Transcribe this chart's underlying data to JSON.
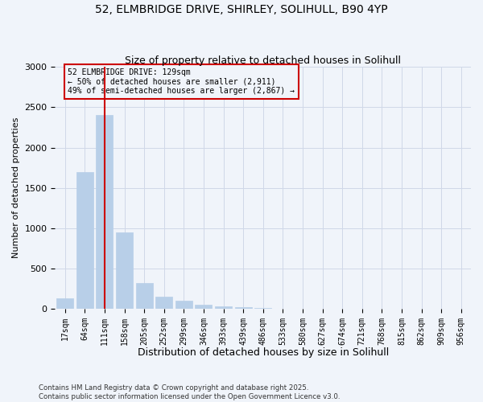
{
  "title_line1": "52, ELMBRIDGE DRIVE, SHIRLEY, SOLIHULL, B90 4YP",
  "title_line2": "Size of property relative to detached houses in Solihull",
  "xlabel": "Distribution of detached houses by size in Solihull",
  "ylabel": "Number of detached properties",
  "footnote": "Contains HM Land Registry data © Crown copyright and database right 2025.\nContains public sector information licensed under the Open Government Licence v3.0.",
  "bin_labels": [
    "17sqm",
    "64sqm",
    "111sqm",
    "158sqm",
    "205sqm",
    "252sqm",
    "299sqm",
    "346sqm",
    "393sqm",
    "439sqm",
    "486sqm",
    "533sqm",
    "580sqm",
    "627sqm",
    "674sqm",
    "721sqm",
    "768sqm",
    "815sqm",
    "862sqm",
    "909sqm",
    "956sqm"
  ],
  "bar_heights": [
    130,
    1700,
    2400,
    950,
    325,
    155,
    100,
    55,
    30,
    20,
    10,
    5,
    0,
    0,
    0,
    0,
    0,
    0,
    0,
    0,
    0
  ],
  "bar_color": "#b8cfe8",
  "bar_edge_color": "#b8cfe8",
  "red_line_bin": 2,
  "red_line_color": "#cc0000",
  "annotation_text": "52 ELMBRIDGE DRIVE: 129sqm\n← 50% of detached houses are smaller (2,911)\n49% of semi-detached houses are larger (2,867) →",
  "annotation_box_color": "#cc0000",
  "ylim": [
    0,
    3000
  ],
  "yticks": [
    0,
    500,
    1000,
    1500,
    2000,
    2500,
    3000
  ],
  "background_color": "#f0f4fa",
  "grid_color": "#d0d8e8"
}
